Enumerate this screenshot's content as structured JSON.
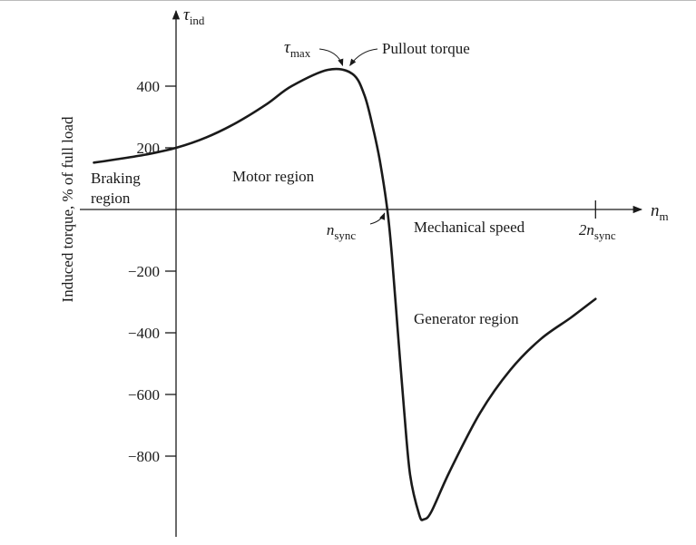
{
  "chart_data": {
    "type": "line",
    "title": "",
    "xlabel": "Mechanical speed",
    "ylabel": "Induced torque, % of full load",
    "x_axis_symbol": "n",
    "x_axis_symbol_sub": "m",
    "y_axis_symbol": "τ",
    "y_axis_symbol_sub": "ind",
    "ylim": [
      -1050,
      540
    ],
    "xlim": [
      -0.27,
      1.62
    ],
    "y_ticks": [
      {
        "value": 400,
        "label": "400"
      },
      {
        "value": 200,
        "label": "200"
      },
      {
        "value": -200,
        "label": "−200"
      },
      {
        "value": -400,
        "label": "−400"
      },
      {
        "value": -600,
        "label": "−600"
      },
      {
        "value": -800,
        "label": "−800"
      }
    ],
    "x_ticks": [
      {
        "value": 0.695,
        "label_main": "n",
        "label_sub": "sync"
      },
      {
        "value": 1.38,
        "label_main": "2n",
        "label_sub": "sync"
      }
    ],
    "regions": [
      {
        "name": "braking",
        "lines": [
          "Braking",
          "region"
        ]
      },
      {
        "name": "motor",
        "lines": [
          "Motor region"
        ]
      },
      {
        "name": "generator",
        "lines": [
          "Generator region"
        ]
      }
    ],
    "annotations": {
      "tau_max_main": "τ",
      "tau_max_sub": "max",
      "pullout": "Pullout torque"
    },
    "series": [
      {
        "points": [
          [
            -0.27,
            152
          ],
          [
            -0.2,
            162
          ],
          [
            -0.1,
            178
          ],
          [
            0.0,
            200
          ],
          [
            0.1,
            234
          ],
          [
            0.2,
            282
          ],
          [
            0.3,
            343
          ],
          [
            0.38,
            400
          ],
          [
            0.5,
            453
          ],
          [
            0.58,
            440
          ],
          [
            0.62,
            370
          ],
          [
            0.65,
            255
          ],
          [
            0.67,
            160
          ],
          [
            0.695,
            0
          ],
          [
            0.71,
            -150
          ],
          [
            0.73,
            -400
          ],
          [
            0.75,
            -650
          ],
          [
            0.77,
            -860
          ],
          [
            0.8,
            -990
          ],
          [
            0.815,
            -1005
          ],
          [
            0.84,
            -980
          ],
          [
            0.9,
            -850
          ],
          [
            1.0,
            -660
          ],
          [
            1.1,
            -520
          ],
          [
            1.2,
            -420
          ],
          [
            1.3,
            -350
          ],
          [
            1.38,
            -290
          ]
        ]
      }
    ],
    "grid": false
  }
}
